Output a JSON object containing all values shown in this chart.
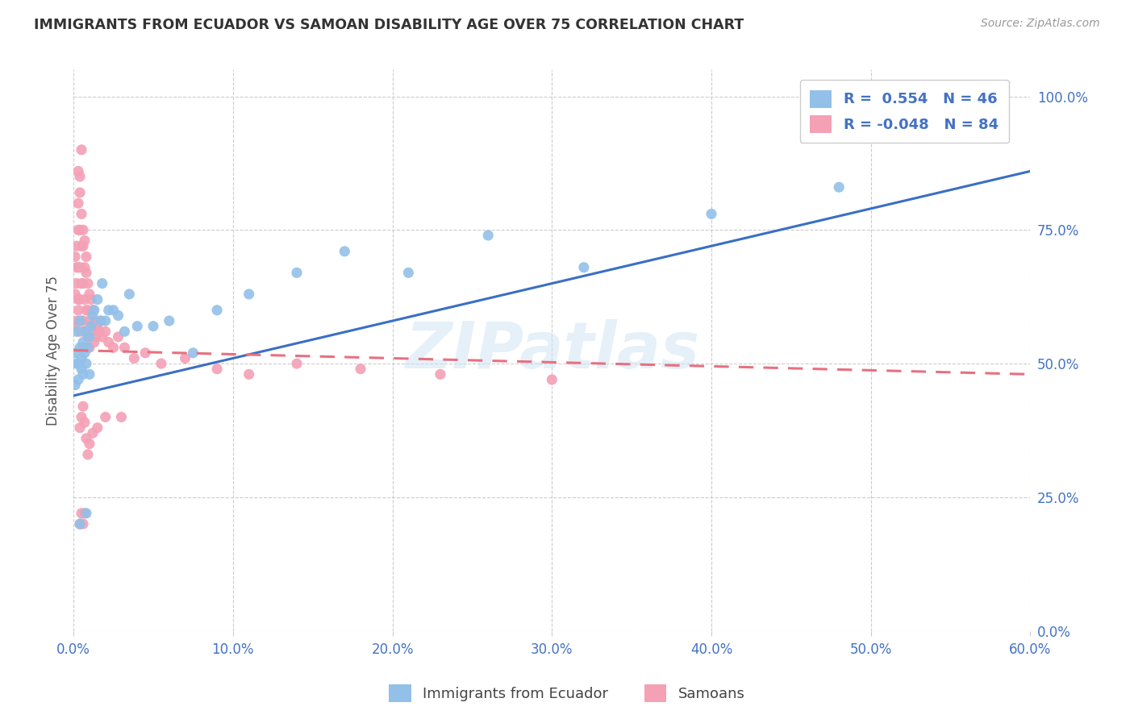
{
  "title": "IMMIGRANTS FROM ECUADOR VS SAMOAN DISABILITY AGE OVER 75 CORRELATION CHART",
  "source": "Source: ZipAtlas.com",
  "x_ticks": [
    0.0,
    0.1,
    0.2,
    0.3,
    0.4,
    0.5,
    0.6
  ],
  "x_tick_labels": [
    "0.0%",
    "10.0%",
    "20.0%",
    "30.0%",
    "40.0%",
    "50.0%",
    "60.0%"
  ],
  "y_ticks": [
    0.0,
    0.25,
    0.5,
    0.75,
    1.0
  ],
  "y_tick_labels": [
    "0.0%",
    "25.0%",
    "50.0%",
    "75.0%",
    "100.0%"
  ],
  "xlim": [
    0.0,
    0.6
  ],
  "ylim": [
    0.0,
    1.05
  ],
  "ecuador_color": "#92C0E8",
  "samoan_color": "#F4A0B5",
  "line_ec_color": "#3A6FC4",
  "line_sa_color": "#E87080",
  "legend_label1": "Immigrants from Ecuador",
  "legend_label2": "Samoans",
  "watermark": "ZIPatlas",
  "ec_line_x0": 0.0,
  "ec_line_y0": 0.44,
  "ec_line_x1": 0.6,
  "ec_line_y1": 0.86,
  "sa_line_x0": 0.0,
  "sa_line_y0": 0.525,
  "sa_line_x1": 0.6,
  "sa_line_y1": 0.48,
  "ec_x": [
    0.001,
    0.001,
    0.002,
    0.002,
    0.003,
    0.003,
    0.004,
    0.004,
    0.005,
    0.005,
    0.006,
    0.006,
    0.007,
    0.007,
    0.008,
    0.009,
    0.01,
    0.01,
    0.011,
    0.012,
    0.013,
    0.015,
    0.017,
    0.018,
    0.02,
    0.022,
    0.025,
    0.028,
    0.032,
    0.035,
    0.04,
    0.05,
    0.06,
    0.075,
    0.09,
    0.11,
    0.14,
    0.17,
    0.21,
    0.26,
    0.32,
    0.4,
    0.48,
    0.55,
    0.008,
    0.004
  ],
  "ec_y": [
    0.46,
    0.52,
    0.5,
    0.56,
    0.5,
    0.47,
    0.53,
    0.58,
    0.51,
    0.49,
    0.54,
    0.48,
    0.56,
    0.52,
    0.5,
    0.53,
    0.55,
    0.48,
    0.57,
    0.59,
    0.6,
    0.62,
    0.58,
    0.65,
    0.58,
    0.6,
    0.6,
    0.59,
    0.56,
    0.63,
    0.57,
    0.57,
    0.58,
    0.52,
    0.6,
    0.63,
    0.67,
    0.71,
    0.67,
    0.74,
    0.68,
    0.78,
    0.83,
    1.0,
    0.22,
    0.2
  ],
  "sa_x": [
    0.001,
    0.001,
    0.001,
    0.002,
    0.002,
    0.002,
    0.002,
    0.003,
    0.003,
    0.003,
    0.003,
    0.004,
    0.004,
    0.004,
    0.004,
    0.005,
    0.005,
    0.005,
    0.006,
    0.006,
    0.006,
    0.006,
    0.007,
    0.007,
    0.007,
    0.008,
    0.008,
    0.008,
    0.009,
    0.009,
    0.009,
    0.01,
    0.01,
    0.01,
    0.011,
    0.011,
    0.012,
    0.012,
    0.013,
    0.013,
    0.014,
    0.015,
    0.016,
    0.017,
    0.018,
    0.02,
    0.022,
    0.025,
    0.028,
    0.032,
    0.038,
    0.045,
    0.055,
    0.07,
    0.09,
    0.11,
    0.14,
    0.18,
    0.23,
    0.3,
    0.003,
    0.004,
    0.005,
    0.003,
    0.004,
    0.005,
    0.006,
    0.007,
    0.008,
    0.004,
    0.005,
    0.006,
    0.007,
    0.008,
    0.009,
    0.01,
    0.012,
    0.015,
    0.02,
    0.03,
    0.004,
    0.005,
    0.006,
    0.007
  ],
  "sa_y": [
    0.57,
    0.63,
    0.7,
    0.58,
    0.65,
    0.72,
    0.68,
    0.6,
    0.68,
    0.75,
    0.62,
    0.56,
    0.62,
    0.68,
    0.75,
    0.58,
    0.65,
    0.72,
    0.53,
    0.58,
    0.65,
    0.72,
    0.56,
    0.62,
    0.68,
    0.56,
    0.6,
    0.67,
    0.55,
    0.6,
    0.65,
    0.53,
    0.58,
    0.63,
    0.57,
    0.62,
    0.56,
    0.6,
    0.54,
    0.58,
    0.55,
    0.57,
    0.56,
    0.58,
    0.55,
    0.56,
    0.54,
    0.53,
    0.55,
    0.53,
    0.51,
    0.52,
    0.5,
    0.51,
    0.49,
    0.48,
    0.5,
    0.49,
    0.48,
    0.47,
    0.8,
    0.85,
    0.9,
    0.86,
    0.82,
    0.78,
    0.75,
    0.73,
    0.7,
    0.38,
    0.4,
    0.42,
    0.39,
    0.36,
    0.33,
    0.35,
    0.37,
    0.38,
    0.4,
    0.4,
    0.2,
    0.22,
    0.2,
    0.22
  ]
}
